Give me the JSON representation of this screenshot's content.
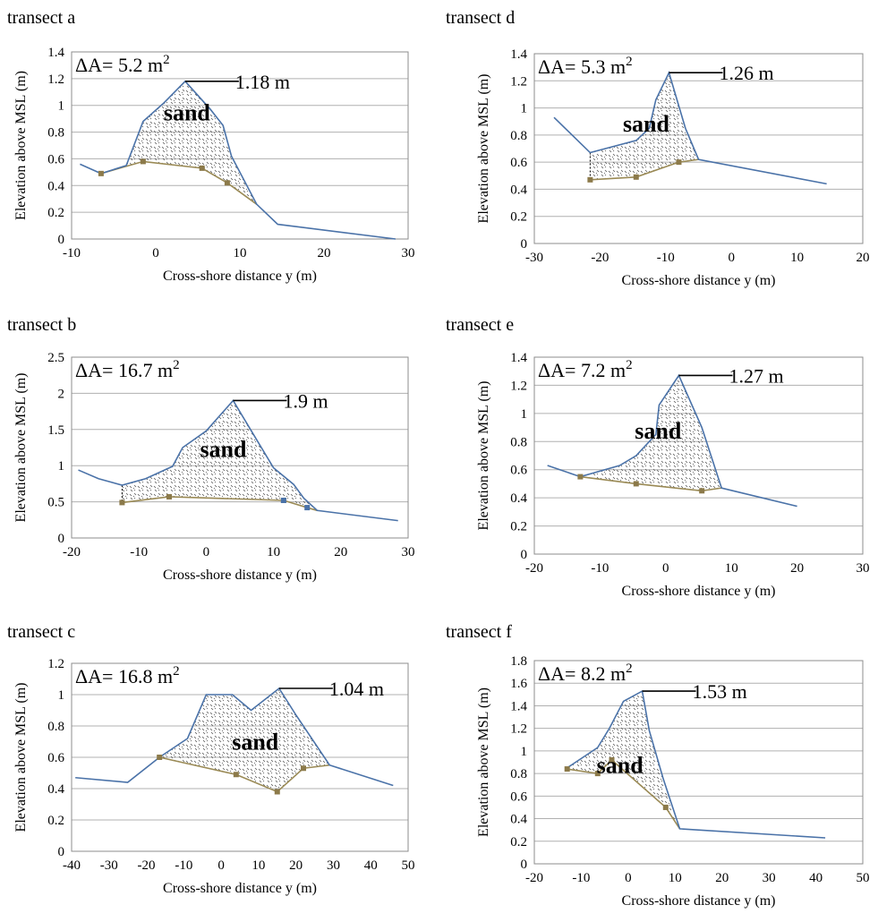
{
  "chart_data": [
    {
      "type": "area",
      "title": "transect a",
      "xlabel": "Cross-shore distance y (m)",
      "ylabel": "Elevation above MSL (m)",
      "xlim": [
        -10,
        30
      ],
      "ylim": [
        0,
        1.4
      ],
      "xticks": [
        "-10",
        "0",
        "10",
        "20",
        "30"
      ],
      "yticks": [
        "0",
        "0.2",
        "0.4",
        "0.6",
        "0.8",
        "1",
        "1.2",
        "1.4"
      ],
      "area_label": "ΔA= 5.2 m",
      "area_unit_sup": "2",
      "peak_label": "1.18 m",
      "peak": [
        3.5,
        1.18
      ],
      "sand_label": "sand",
      "series": [
        {
          "role": "post-placement profile",
          "x": [
            -9,
            -6.5,
            -3.5,
            -1.5,
            1,
            3.5,
            6.5,
            8,
            9,
            12,
            14.5,
            28.5
          ],
          "y": [
            0.56,
            0.49,
            0.55,
            0.88,
            1.02,
            1.18,
            0.97,
            0.85,
            0.62,
            0.26,
            0.11,
            0
          ]
        },
        {
          "role": "pre-placement profile",
          "x": [
            -6.5,
            -1.5,
            5.5,
            8.5,
            12
          ],
          "y": [
            0.49,
            0.58,
            0.53,
            0.42,
            0.26
          ],
          "markers": [
            [
              -6.5,
              0.49
            ],
            [
              -1.5,
              0.58
            ],
            [
              5.5,
              0.53
            ],
            [
              8.5,
              0.42
            ]
          ]
        }
      ]
    },
    {
      "type": "area",
      "title": "transect d",
      "xlabel": "Cross-shore distance y (m)",
      "ylabel": "Elevation above MSL (m)",
      "xlim": [
        -30,
        20
      ],
      "ylim": [
        0,
        1.4
      ],
      "xticks": [
        "-30",
        "-20",
        "-10",
        "0",
        "10",
        "20"
      ],
      "yticks": [
        "0",
        "0.2",
        "0.4",
        "0.6",
        "0.8",
        "1",
        "1.2",
        "1.4"
      ],
      "area_label": "ΔA= 5.3 m",
      "area_unit_sup": "2",
      "peak_label": "1.26 m",
      "peak": [
        -9.5,
        1.26
      ],
      "sand_label": "sand",
      "series": [
        {
          "role": "post-placement profile",
          "x": [
            -27,
            -21.5,
            -14.5,
            -12.5,
            -11.5,
            -9.5,
            -7,
            -5,
            14.5
          ],
          "y": [
            0.93,
            0.67,
            0.76,
            0.85,
            1.06,
            1.26,
            0.85,
            0.62,
            0.44
          ]
        },
        {
          "role": "pre-placement profile",
          "x": [
            -21.5,
            -14.5,
            -8,
            -5
          ],
          "y": [
            0.47,
            0.49,
            0.6,
            0.62
          ],
          "markers": [
            [
              -21.5,
              0.47
            ],
            [
              -14.5,
              0.49
            ],
            [
              -8,
              0.6
            ]
          ]
        }
      ]
    },
    {
      "type": "area",
      "title": "transect b",
      "xlabel": "Cross-shore distance y (m)",
      "ylabel": "Elevation above MSL (m)",
      "xlim": [
        -20,
        30
      ],
      "ylim": [
        0,
        2.5
      ],
      "xticks": [
        "-20",
        "-10",
        "0",
        "10",
        "20",
        "30"
      ],
      "yticks": [
        "0",
        "0.5",
        "1",
        "1.5",
        "2",
        "2.5"
      ],
      "area_label": "ΔA= 16.7 m",
      "area_unit_sup": "2",
      "peak_label": "1.9 m",
      "peak": [
        4,
        1.9
      ],
      "sand_label": "sand",
      "series": [
        {
          "role": "post-placement profile",
          "x": [
            -19,
            -16,
            -12.5,
            -9,
            -5,
            -3.5,
            0,
            4,
            10,
            13,
            14.5,
            16.5,
            28.5
          ],
          "y": [
            0.94,
            0.82,
            0.73,
            0.82,
            0.99,
            1.25,
            1.48,
            1.9,
            0.97,
            0.74,
            0.55,
            0.38,
            0.24
          ]
        },
        {
          "role": "pre-placement profile",
          "x": [
            -12.5,
            -5.5,
            11.5,
            15,
            16.5
          ],
          "y": [
            0.49,
            0.57,
            0.52,
            0.42,
            0.38
          ],
          "markers": [
            [
              -12.5,
              0.49
            ],
            [
              -5.5,
              0.57
            ],
            [
              11.5,
              0.52
            ]
          ],
          "markers_blue": [
            [
              11.5,
              0.52
            ],
            [
              15,
              0.42
            ]
          ]
        }
      ]
    },
    {
      "type": "area",
      "title": "transect e",
      "xlabel": "Cross-shore distance y (m)",
      "ylabel": "Elevation above MSL (m)",
      "xlim": [
        -20,
        30
      ],
      "ylim": [
        0,
        1.4
      ],
      "xticks": [
        "-20",
        "-10",
        "0",
        "10",
        "20",
        "30"
      ],
      "yticks": [
        "0",
        "0.2",
        "0.4",
        "0.6",
        "0.8",
        "1",
        "1.2",
        "1.4"
      ],
      "area_label": "ΔA= 7.2 m",
      "area_unit_sup": "2",
      "peak_label": "1.27 m",
      "peak": [
        2,
        1.27
      ],
      "sand_label": "sand",
      "series": [
        {
          "role": "post-placement profile",
          "x": [
            -18,
            -13,
            -7,
            -4.5,
            -1.5,
            -1,
            2,
            5.5,
            8.5,
            20
          ],
          "y": [
            0.63,
            0.55,
            0.63,
            0.7,
            0.85,
            1.06,
            1.27,
            0.9,
            0.47,
            0.34
          ]
        },
        {
          "role": "pre-placement profile",
          "x": [
            -13,
            -4.5,
            5.5,
            8.5
          ],
          "y": [
            0.55,
            0.5,
            0.45,
            0.47
          ],
          "markers": [
            [
              -13,
              0.55
            ],
            [
              -4.5,
              0.5
            ],
            [
              5.5,
              0.45
            ]
          ]
        }
      ]
    },
    {
      "type": "area",
      "title": "transect c",
      "xlabel": "Cross-shore distance y (m)",
      "ylabel": "Elevation above MSL (m)",
      "xlim": [
        -40,
        50
      ],
      "ylim": [
        0,
        1.2
      ],
      "xticks": [
        "-40",
        "-30",
        "-20",
        "-10",
        "0",
        "10",
        "20",
        "30",
        "40",
        "50"
      ],
      "yticks": [
        "0",
        "0.2",
        "0.4",
        "0.6",
        "0.8",
        "1",
        "1.2"
      ],
      "area_label": "ΔA= 16.8 m",
      "area_unit_sup": "2",
      "peak_label": "1.04 m",
      "peak": [
        15.5,
        1.04
      ],
      "sand_label": "sand",
      "series": [
        {
          "role": "post-placement profile",
          "x": [
            -39,
            -25,
            -16.5,
            -9,
            -4,
            3,
            8,
            15.5,
            20,
            29,
            46
          ],
          "y": [
            0.47,
            0.44,
            0.6,
            0.72,
            1,
            1,
            0.9,
            1.04,
            0.87,
            0.55,
            0.42
          ]
        },
        {
          "role": "pre-placement profile",
          "x": [
            -16.5,
            4,
            15,
            22,
            29
          ],
          "y": [
            0.6,
            0.49,
            0.38,
            0.53,
            0.55
          ],
          "markers": [
            [
              -16.5,
              0.6
            ],
            [
              4,
              0.49
            ],
            [
              15,
              0.38
            ],
            [
              22,
              0.53
            ]
          ]
        }
      ]
    },
    {
      "type": "area",
      "title": "transect f",
      "xlabel": "Cross-shore distance y (m)",
      "ylabel": "Elevation above MSL (m)",
      "xlim": [
        -20,
        50
      ],
      "ylim": [
        0,
        1.8
      ],
      "xticks": [
        "-20",
        "-10",
        "0",
        "10",
        "20",
        "30",
        "40",
        "50"
      ],
      "yticks": [
        "0",
        "0.2",
        "0.4",
        "0.6",
        "0.8",
        "1",
        "1.2",
        "1.4",
        "1.6",
        "1.8"
      ],
      "area_label": "ΔA= 8.2 m",
      "area_unit_sup": "2",
      "peak_label": "1.53 m",
      "peak": [
        3,
        1.53
      ],
      "sand_label": "sand",
      "series": [
        {
          "role": "post-placement profile",
          "x": [
            -13,
            -6.5,
            -4,
            -1,
            3,
            4.5,
            7.5,
            11,
            42
          ],
          "y": [
            0.85,
            1.03,
            1.2,
            1.44,
            1.53,
            1.18,
            0.75,
            0.31,
            0.23
          ]
        },
        {
          "role": "pre-placement profile",
          "x": [
            -13,
            -6.5,
            -3.5,
            8,
            11
          ],
          "y": [
            0.84,
            0.8,
            0.92,
            0.5,
            0.31
          ],
          "markers": [
            [
              -13,
              0.84
            ],
            [
              -6.5,
              0.8
            ],
            [
              -3.5,
              0.92
            ],
            [
              8,
              0.5
            ]
          ]
        }
      ]
    }
  ]
}
